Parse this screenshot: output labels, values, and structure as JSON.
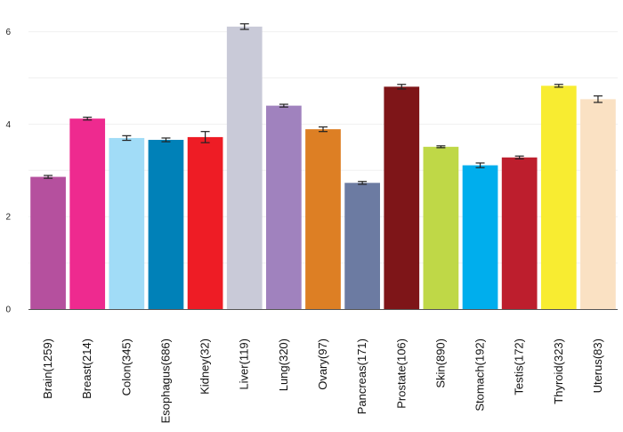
{
  "chart_data": {
    "type": "bar",
    "title": "",
    "xlabel": "",
    "ylabel": "",
    "ylim": [
      0,
      6.3
    ],
    "yticks": [
      0,
      2,
      4,
      6
    ],
    "grid": "horizontal",
    "categories": [
      "Brain(1259)",
      "Breast(214)",
      "Colon(345)",
      "Esophagus(686)",
      "Kidney(32)",
      "Liver(119)",
      "Lung(320)",
      "Ovary(97)",
      "Pancreas(171)",
      "Prostate(106)",
      "Skin(890)",
      "Stomach(192)",
      "Testis(172)",
      "Thyroid(323)",
      "Uterus(83)"
    ],
    "values": [
      2.86,
      4.12,
      3.7,
      3.66,
      3.72,
      6.11,
      4.4,
      3.89,
      2.73,
      4.81,
      3.51,
      3.11,
      3.28,
      4.83,
      4.54
    ],
    "errors": [
      0.03,
      0.03,
      0.05,
      0.04,
      0.12,
      0.06,
      0.03,
      0.05,
      0.03,
      0.05,
      0.02,
      0.05,
      0.03,
      0.03,
      0.07
    ],
    "colors": [
      "#b5509e",
      "#ee2a8f",
      "#a1dcf7",
      "#0081b8",
      "#ee1c25",
      "#c9cad8",
      "#a082be",
      "#dd7f24",
      "#6c7ba2",
      "#7e1518",
      "#bfd847",
      "#00aeed",
      "#bd1e2d",
      "#f8ec31",
      "#fae1c3"
    ]
  }
}
